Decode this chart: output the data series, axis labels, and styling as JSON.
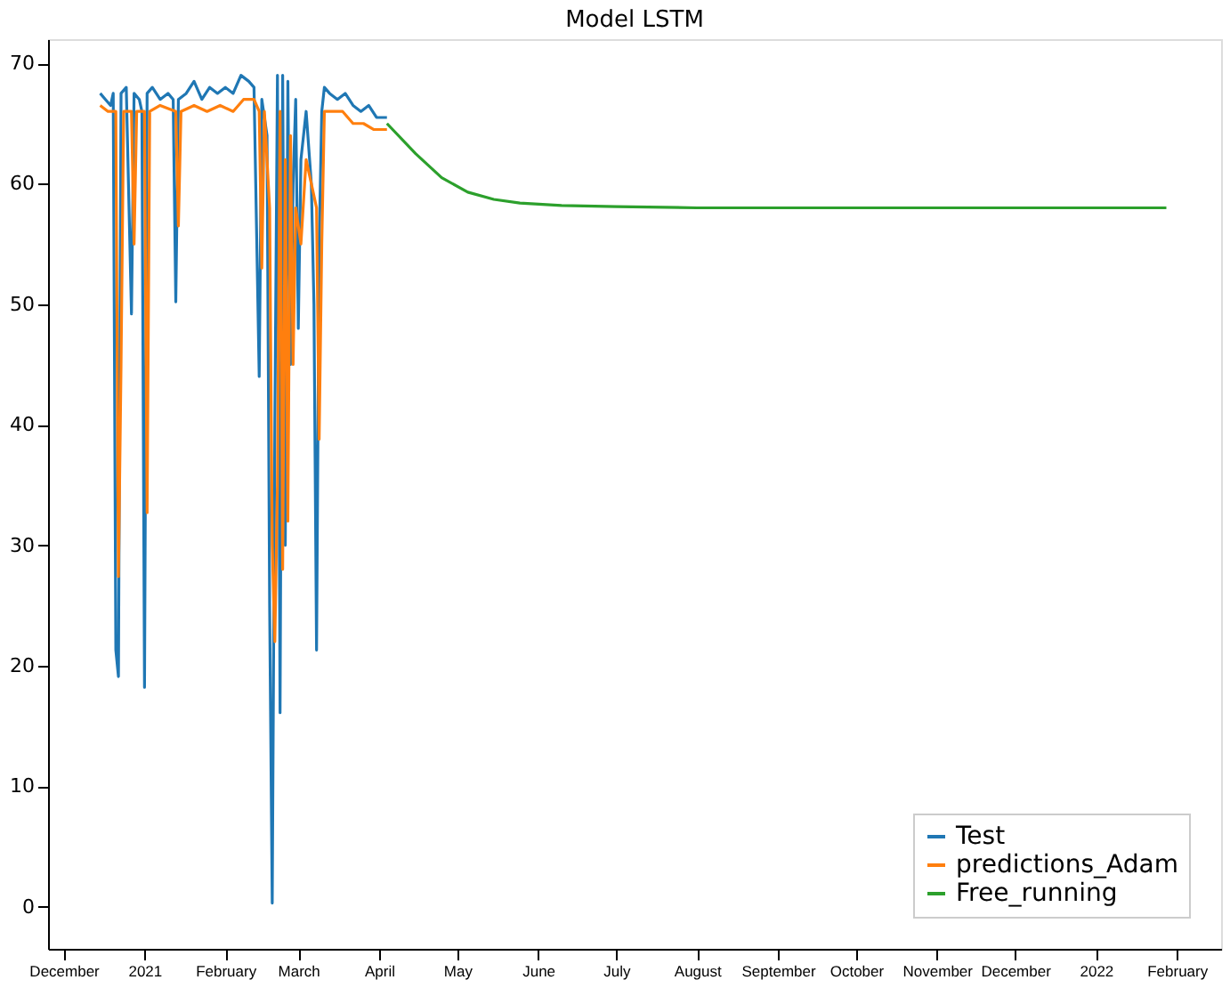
{
  "chart_data": {
    "type": "line",
    "title": "Model LSTM",
    "legend": "bottom right",
    "grid": false,
    "line_style": "solid",
    "marker": "none",
    "xlim": [
      "2020-11-25",
      "2022-02-18"
    ],
    "xticks": [
      {
        "value": "2020-12-01",
        "label": "December"
      },
      {
        "value": "2021-01-01",
        "label": "2021"
      },
      {
        "value": "2021-02-01",
        "label": "February"
      },
      {
        "value": "2021-03-01",
        "label": "March"
      },
      {
        "value": "2021-04-01",
        "label": "April"
      },
      {
        "value": "2021-05-01",
        "label": "May"
      },
      {
        "value": "2021-06-01",
        "label": "June"
      },
      {
        "value": "2021-07-01",
        "label": "July"
      },
      {
        "value": "2021-08-01",
        "label": "August"
      },
      {
        "value": "2021-09-01",
        "label": "September"
      },
      {
        "value": "2021-10-01",
        "label": "October"
      },
      {
        "value": "2021-11-01",
        "label": "November"
      },
      {
        "value": "2021-12-01",
        "label": "December"
      },
      {
        "value": "2022-01-01",
        "label": "2022"
      },
      {
        "value": "2022-02-01",
        "label": "February"
      }
    ],
    "ylim": [
      -3.5,
      72
    ],
    "yticks": [
      0,
      10,
      20,
      30,
      40,
      50,
      60,
      70
    ],
    "series": [
      {
        "name": "Test",
        "color": "#1f77b4",
        "x": [
          "2020-12-15",
          "2020-12-17",
          "2020-12-19",
          "2020-12-20",
          "2020-12-21",
          "2020-12-22",
          "2020-12-23",
          "2020-12-25",
          "2020-12-27",
          "2020-12-28",
          "2020-12-30",
          "2020-12-31",
          "2021-01-01",
          "2021-01-02",
          "2021-01-04",
          "2021-01-07",
          "2021-01-10",
          "2021-01-12",
          "2021-01-13",
          "2021-01-14",
          "2021-01-17",
          "2021-01-20",
          "2021-01-23",
          "2021-01-26",
          "2021-01-29",
          "2021-02-01",
          "2021-02-04",
          "2021-02-07",
          "2021-02-10",
          "2021-02-12",
          "2021-02-14",
          "2021-02-15",
          "2021-02-17",
          "2021-02-18",
          "2021-02-19",
          "2021-02-20",
          "2021-02-21",
          "2021-02-22",
          "2021-02-23",
          "2021-02-24",
          "2021-02-25",
          "2021-02-26",
          "2021-02-27",
          "2021-02-28",
          "2021-03-01",
          "2021-03-02",
          "2021-03-04",
          "2021-03-06",
          "2021-03-07",
          "2021-03-08",
          "2021-03-09",
          "2021-03-10",
          "2021-03-11",
          "2021-03-13",
          "2021-03-16",
          "2021-03-19",
          "2021-03-22",
          "2021-03-25",
          "2021-03-28",
          "2021-03-31",
          "2021-04-04"
        ],
        "values": [
          67.5,
          67,
          66.5,
          67.5,
          21.3,
          19.1,
          67.5,
          68,
          49.2,
          67.5,
          67,
          66,
          18.2,
          67.5,
          68,
          67,
          67.5,
          67,
          50.2,
          67,
          67.5,
          68.5,
          67,
          68,
          67.5,
          68,
          67.5,
          69,
          68.5,
          68,
          44,
          67,
          64,
          25,
          0.3,
          40,
          69,
          16.1,
          69,
          30,
          68.5,
          45,
          60,
          67,
          48,
          62,
          66,
          60,
          50,
          21.3,
          55,
          66,
          68,
          67.5,
          67,
          67.5,
          66.5,
          66,
          66.5,
          65.5,
          65.5
        ]
      },
      {
        "name": "predictions_Adam",
        "color": "#ff7f0e",
        "x": [
          "2020-12-15",
          "2020-12-18",
          "2020-12-20",
          "2020-12-21",
          "2020-12-22",
          "2020-12-23",
          "2020-12-24",
          "2020-12-27",
          "2020-12-28",
          "2020-12-29",
          "2021-01-01",
          "2021-01-02",
          "2021-01-03",
          "2021-01-07",
          "2021-01-13",
          "2021-01-14",
          "2021-01-15",
          "2021-01-20",
          "2021-01-25",
          "2021-01-30",
          "2021-02-04",
          "2021-02-08",
          "2021-02-12",
          "2021-02-14",
          "2021-02-15",
          "2021-02-16",
          "2021-02-18",
          "2021-02-19",
          "2021-02-20",
          "2021-02-21",
          "2021-02-22",
          "2021-02-23",
          "2021-02-24",
          "2021-02-25",
          "2021-02-26",
          "2021-02-27",
          "2021-02-28",
          "2021-03-02",
          "2021-03-04",
          "2021-03-06",
          "2021-03-08",
          "2021-03-09",
          "2021-03-10",
          "2021-03-11",
          "2021-03-14",
          "2021-03-18",
          "2021-03-22",
          "2021-03-26",
          "2021-03-30",
          "2021-04-04"
        ],
        "values": [
          66.5,
          66,
          66,
          66,
          27.4,
          45,
          66,
          66,
          55,
          66,
          66,
          32.7,
          66,
          66.5,
          66,
          56.5,
          66,
          66.5,
          66,
          66.5,
          66,
          67,
          67,
          66,
          53,
          66,
          58,
          30,
          22,
          35,
          66,
          28,
          62,
          32,
          64,
          45,
          58,
          55,
          62,
          60,
          58,
          38.8,
          55,
          66,
          66,
          66,
          65,
          65,
          64.5,
          64.5
        ]
      },
      {
        "name": "Free_running",
        "color": "#2ca02c",
        "x": [
          "2021-04-04",
          "2021-04-15",
          "2021-04-25",
          "2021-05-05",
          "2021-05-15",
          "2021-05-25",
          "2021-06-10",
          "2021-07-01",
          "2021-08-01",
          "2022-01-28"
        ],
        "values": [
          65,
          62.5,
          60.5,
          59.3,
          58.7,
          58.4,
          58.2,
          58.1,
          58,
          58
        ]
      }
    ]
  }
}
